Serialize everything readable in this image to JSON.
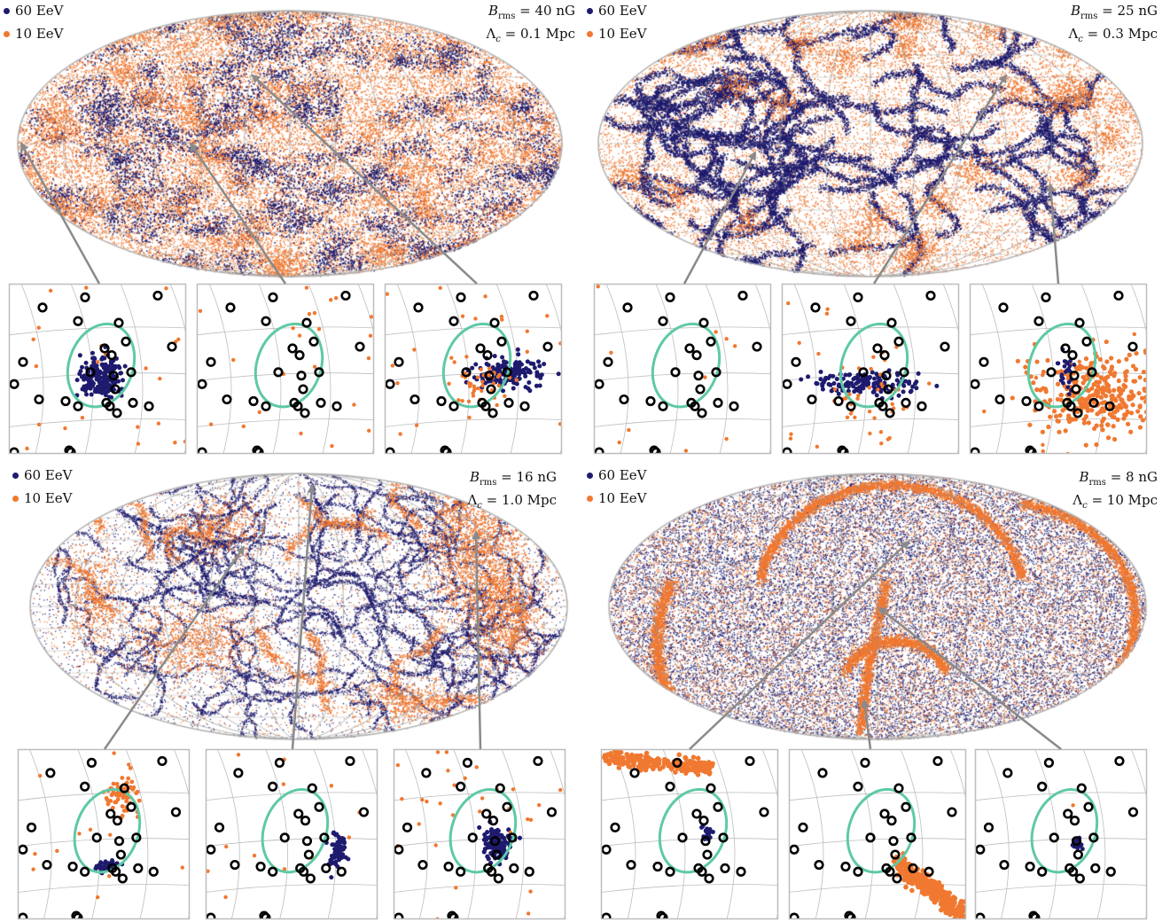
{
  "colors": {
    "high": "#1e1b6e",
    "low": "#f07830",
    "contour": "#5ec9a5",
    "source": "#000000",
    "grid": "#bdbdbd",
    "frame": "#bdbdbd"
  },
  "legend": {
    "high_label": "60 EeV",
    "low_label": "10 EeV"
  },
  "chart_data": [
    {
      "type": "scatter",
      "panel": "top-left",
      "projection": "mollweide-sky-map",
      "series": [
        {
          "name": "60 EeV",
          "color": "#1e1b6e"
        },
        {
          "name": "10 EeV",
          "color": "#f07830"
        }
      ],
      "B_rms": "40 nG",
      "Lambda_c": "0.1 Mpc",
      "params_text": {
        "b_prefix": "B",
        "b_sub": "rms",
        "b_value": " = 40 nG",
        "l_prefix": "Λ",
        "l_sub": "c",
        "l_value": " = 0.1 Mpc"
      },
      "zoom_insets": 3,
      "pattern": "fine-grained turbulent mixing"
    },
    {
      "type": "scatter",
      "panel": "top-right",
      "projection": "mollweide-sky-map",
      "series": [
        {
          "name": "60 EeV",
          "color": "#1e1b6e"
        },
        {
          "name": "10 EeV",
          "color": "#f07830"
        }
      ],
      "B_rms": "25 nG",
      "Lambda_c": "0.3 Mpc",
      "params_text": {
        "b_prefix": "B",
        "b_sub": "rms",
        "b_value": " = 25 nG",
        "l_prefix": "Λ",
        "l_sub": "c",
        "l_value": " = 0.3 Mpc"
      },
      "zoom_insets": 3,
      "pattern": "cellular filaments"
    },
    {
      "type": "scatter",
      "panel": "bottom-left",
      "projection": "mollweide-sky-map",
      "series": [
        {
          "name": "60 EeV",
          "color": "#1e1b6e"
        },
        {
          "name": "10 EeV",
          "color": "#f07830"
        }
      ],
      "B_rms": "16 nG",
      "Lambda_c": "1.0 Mpc",
      "params_text": {
        "b_prefix": "B",
        "b_sub": "rms",
        "b_value": " = 16 nG",
        "l_prefix": "Λ",
        "l_sub": "c",
        "l_value": " = 1.0 Mpc"
      },
      "zoom_insets": 3,
      "pattern": "large caustic filaments"
    },
    {
      "type": "scatter",
      "panel": "bottom-right",
      "projection": "mollweide-sky-map",
      "series": [
        {
          "name": "60 EeV",
          "color": "#1e1b6e"
        },
        {
          "name": "10 EeV",
          "color": "#f07830"
        }
      ],
      "B_rms": "8 nG",
      "Lambda_c": "10 Mpc",
      "params_text": {
        "b_prefix": "B",
        "b_sub": "rms",
        "b_value": " = 8 nG",
        "l_prefix": "Λ",
        "l_sub": "c",
        "l_value": " = 10 Mpc"
      },
      "zoom_insets": 3,
      "pattern": "few large arcs over uniform background"
    }
  ]
}
